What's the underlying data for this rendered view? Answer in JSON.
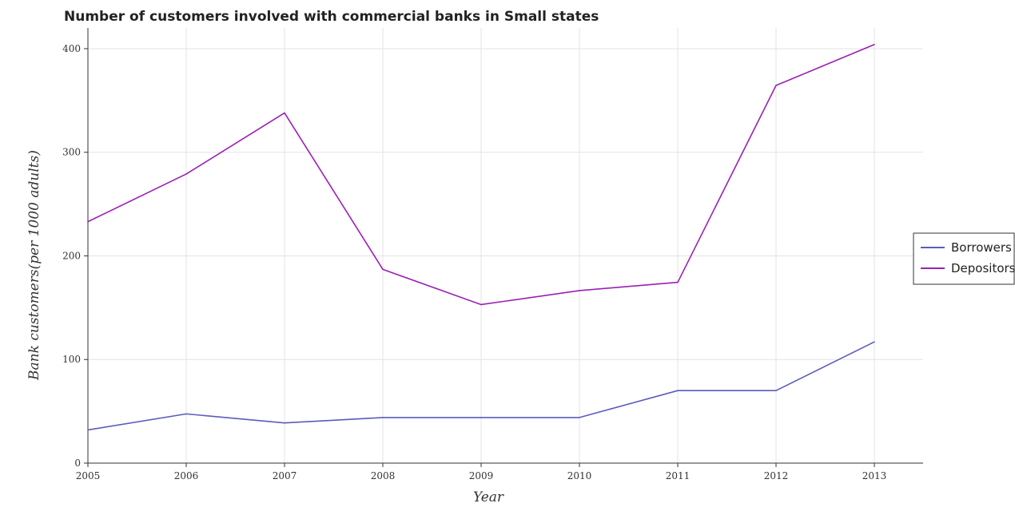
{
  "chart_data": {
    "type": "line",
    "title": "Number of customers involved with commercial banks in Small states",
    "xlabel": "Year",
    "ylabel": "Bank customers(per 1000 adults)",
    "categories": [
      "2005",
      "2006",
      "2007",
      "2008",
      "2009",
      "2010",
      "2011",
      "2012",
      "2013"
    ],
    "ylim": [
      0,
      420
    ],
    "yticks": [
      0,
      100,
      200,
      300,
      400
    ],
    "grid": true,
    "legend_position": "right",
    "series": [
      {
        "name": "Borrowers",
        "color": "#5b5bbd",
        "values": [
          32,
          47.5,
          38.8,
          44,
          44,
          44,
          70,
          70,
          117
        ]
      },
      {
        "name": "Depositors",
        "color": "#9b1fb5",
        "values": [
          233,
          279,
          338,
          187,
          153,
          166.5,
          174.5,
          364.5,
          404
        ]
      }
    ]
  }
}
